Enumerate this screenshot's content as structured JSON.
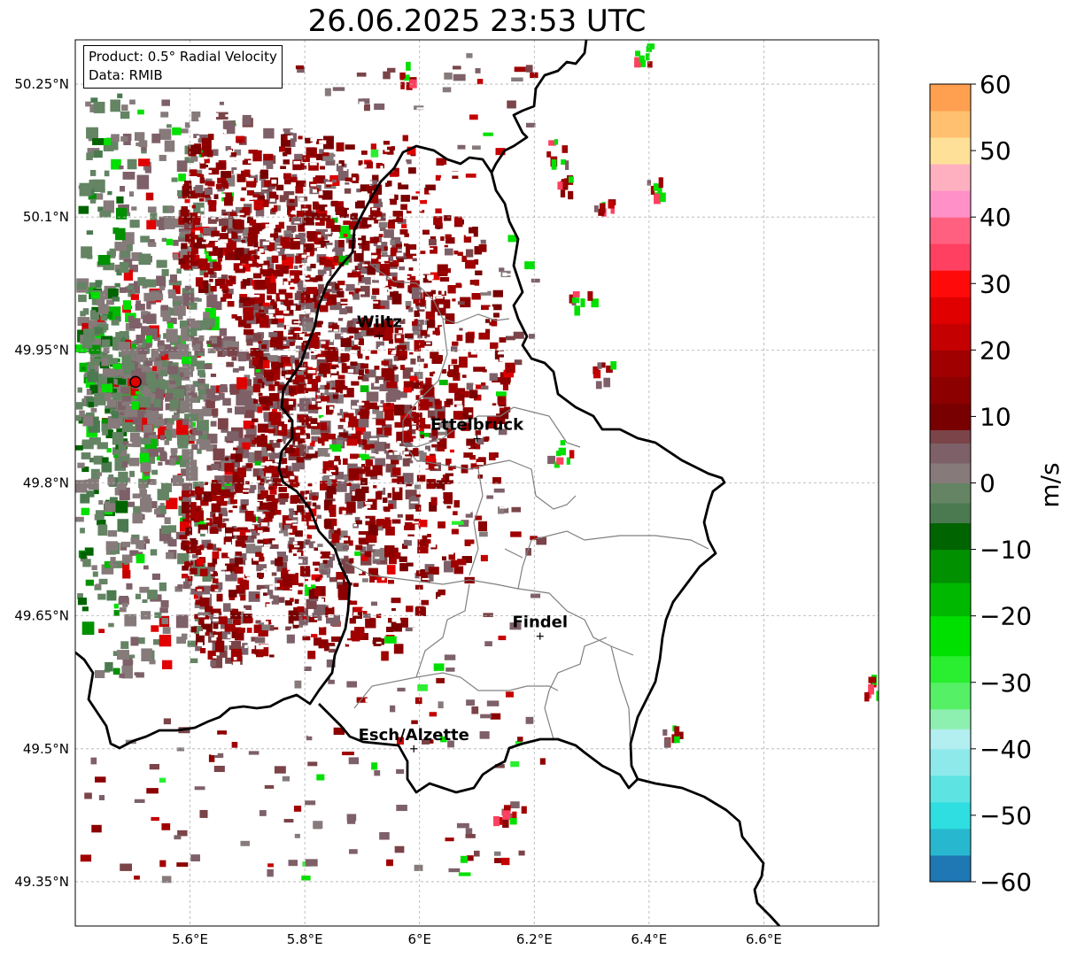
{
  "title": "26.06.2025 23:53 UTC",
  "info_box": {
    "product": "Product: 0.5° Radial Velocity",
    "data": "Data: RMIB"
  },
  "map_extent": {
    "lon_min": 5.4,
    "lon_max": 6.8,
    "lat_min": 49.3,
    "lat_max": 50.3
  },
  "lat_ticks": [
    {
      "value": 50.25,
      "label": "50.25°N"
    },
    {
      "value": 50.1,
      "label": "50.1°N"
    },
    {
      "value": 49.95,
      "label": "49.95°N"
    },
    {
      "value": 49.8,
      "label": "49.8°N"
    },
    {
      "value": 49.65,
      "label": "49.65°N"
    },
    {
      "value": 49.5,
      "label": "49.5°N"
    },
    {
      "value": 49.35,
      "label": "49.35°N"
    }
  ],
  "lon_ticks": [
    {
      "value": 5.6,
      "label": "5.6°E"
    },
    {
      "value": 5.8,
      "label": "5.8°E"
    },
    {
      "value": 6.0,
      "label": "6°E"
    },
    {
      "value": 6.2,
      "label": "6.2°E"
    },
    {
      "value": 6.4,
      "label": "6.4°E"
    },
    {
      "value": 6.6,
      "label": "6.6°E"
    }
  ],
  "radar_site": {
    "lon": 5.505,
    "lat": 49.914
  },
  "cities": [
    {
      "name": "Wiltz",
      "lon": 5.93,
      "lat": 49.966
    },
    {
      "name": "Ettelbruck",
      "lon": 6.1,
      "lat": 49.85
    },
    {
      "name": "Findel",
      "lon": 6.21,
      "lat": 49.627
    },
    {
      "name": "Esch/Alzette",
      "lon": 5.99,
      "lat": 49.5
    }
  ],
  "colorbar": {
    "min": -60,
    "max": 60,
    "unit": "m/s",
    "ticks": [
      {
        "value": 60,
        "label": "60"
      },
      {
        "value": 50,
        "label": "50"
      },
      {
        "value": 40,
        "label": "40"
      },
      {
        "value": 30,
        "label": "30"
      },
      {
        "value": 20,
        "label": "20"
      },
      {
        "value": 10,
        "label": "10"
      },
      {
        "value": 0,
        "label": "0"
      },
      {
        "value": -10,
        "label": "−10"
      },
      {
        "value": -20,
        "label": "−20"
      },
      {
        "value": -30,
        "label": "−30"
      },
      {
        "value": -40,
        "label": "−40"
      },
      {
        "value": -50,
        "label": "−50"
      },
      {
        "value": -60,
        "label": "−60"
      }
    ],
    "stops": [
      {
        "from": -60,
        "to": -56,
        "color": "#1f77b4"
      },
      {
        "from": -56,
        "to": -52,
        "color": "#27b8cf"
      },
      {
        "from": -52,
        "to": -48,
        "color": "#2edee0"
      },
      {
        "from": -48,
        "to": -44,
        "color": "#5ee3e3"
      },
      {
        "from": -44,
        "to": -40,
        "color": "#8ee9ea"
      },
      {
        "from": -40,
        "to": -37,
        "color": "#b3eef0"
      },
      {
        "from": -37,
        "to": -34,
        "color": "#8ef0b0"
      },
      {
        "from": -34,
        "to": -30,
        "color": "#55f065"
      },
      {
        "from": -30,
        "to": -26,
        "color": "#2aef30"
      },
      {
        "from": -26,
        "to": -20,
        "color": "#00e000"
      },
      {
        "from": -20,
        "to": -15,
        "color": "#00b800"
      },
      {
        "from": -15,
        "to": -10,
        "color": "#009000"
      },
      {
        "from": -10,
        "to": -6,
        "color": "#006400"
      },
      {
        "from": -6,
        "to": -3,
        "color": "#4c7a50"
      },
      {
        "from": -3,
        "to": 0,
        "color": "#648464"
      },
      {
        "from": 0,
        "to": 3,
        "color": "#867a7a"
      },
      {
        "from": 3,
        "to": 6,
        "color": "#7e6068"
      },
      {
        "from": 6,
        "to": 8,
        "color": "#7a4448"
      },
      {
        "from": 8,
        "to": 12,
        "color": "#780000"
      },
      {
        "from": 12,
        "to": 16,
        "color": "#8c0000"
      },
      {
        "from": 16,
        "to": 20,
        "color": "#a00000"
      },
      {
        "from": 20,
        "to": 24,
        "color": "#c40000"
      },
      {
        "from": 24,
        "to": 28,
        "color": "#e00000"
      },
      {
        "from": 28,
        "to": 32,
        "color": "#ff0a0a"
      },
      {
        "from": 32,
        "to": 36,
        "color": "#ff4060"
      },
      {
        "from": 36,
        "to": 40,
        "color": "#ff6080"
      },
      {
        "from": 40,
        "to": 44,
        "color": "#ff90c8"
      },
      {
        "from": 44,
        "to": 48,
        "color": "#ffb0c0"
      },
      {
        "from": 48,
        "to": 52,
        "color": "#ffe098"
      },
      {
        "from": 52,
        "to": 56,
        "color": "#ffc070"
      },
      {
        "from": 56,
        "to": 60,
        "color": "#ffa050"
      }
    ]
  }
}
